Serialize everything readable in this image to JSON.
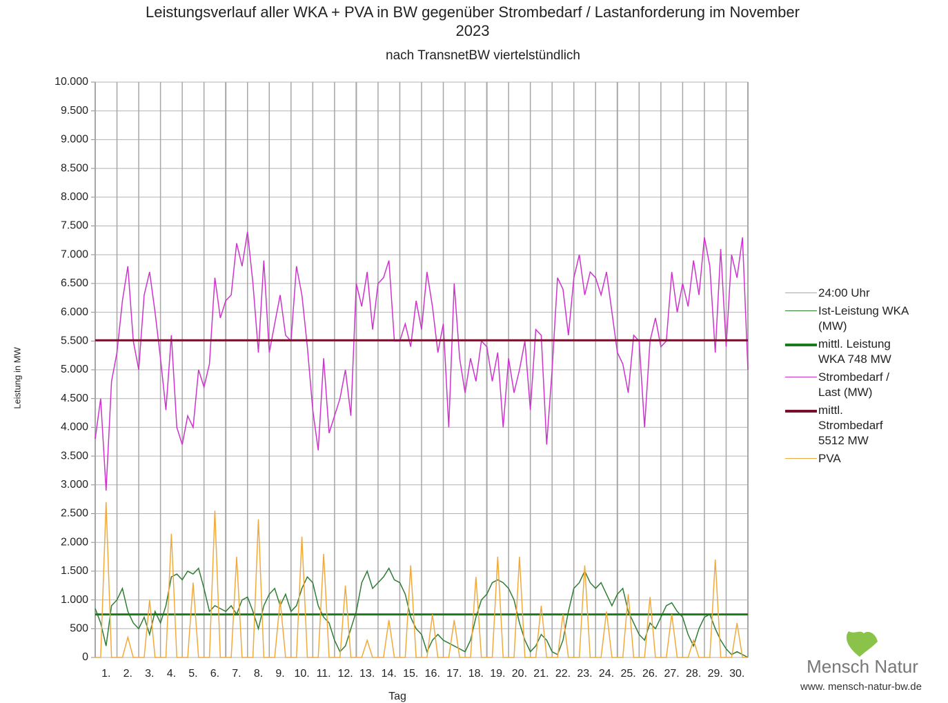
{
  "chart_data": {
    "type": "line",
    "title": "Leistungsverlauf aller WKA + PVA in BW gegenüber  Strombedarf / Lastanforderung im November 2023",
    "subtitle": "nach TransnetBW viertelstündlich",
    "xlabel": "Tag",
    "ylabel": "Leistung in MW",
    "xlim": [
      0,
      30
    ],
    "ylim": [
      0,
      10000
    ],
    "yticks": [
      0,
      500,
      {
        "value": 1000,
        "label": "1.000"
      },
      {
        "value": 1500,
        "label": "1.500"
      },
      {
        "value": 2000,
        "label": "2.000"
      },
      {
        "value": 2500,
        "label": "2.500"
      },
      {
        "value": 3000,
        "label": "3.000"
      },
      {
        "value": 3500,
        "label": "3.500"
      },
      {
        "value": 4000,
        "label": "4.000"
      },
      {
        "value": 4500,
        "label": "4.500"
      },
      {
        "value": 5000,
        "label": "5.000"
      },
      {
        "value": 5500,
        "label": "5.500"
      },
      {
        "value": 6000,
        "label": "6.000"
      },
      {
        "value": 6500,
        "label": "6.500"
      },
      {
        "value": 7000,
        "label": "7.000"
      },
      {
        "value": 7500,
        "label": "7.500"
      },
      {
        "value": 8000,
        "label": "8.000"
      },
      {
        "value": 8500,
        "label": "8.500"
      },
      {
        "value": 9000,
        "label": "9.000"
      },
      {
        "value": 9500,
        "label": "9.500"
      },
      {
        "value": 10000,
        "label": "10.000"
      }
    ],
    "xticks": [
      {
        "value": 0.5,
        "label": "1."
      },
      {
        "value": 1.5,
        "label": "2."
      },
      {
        "value": 2.5,
        "label": "3."
      },
      {
        "value": 3.5,
        "label": "4."
      },
      {
        "value": 4.5,
        "label": "5."
      },
      {
        "value": 5.5,
        "label": "6."
      },
      {
        "value": 6.5,
        "label": "7."
      },
      {
        "value": 7.5,
        "label": "8."
      },
      {
        "value": 8.5,
        "label": "9."
      },
      {
        "value": 9.5,
        "label": "10."
      },
      {
        "value": 10.5,
        "label": "11."
      },
      {
        "value": 11.5,
        "label": "12."
      },
      {
        "value": 12.5,
        "label": "13."
      },
      {
        "value": 13.5,
        "label": "14."
      },
      {
        "value": 14.5,
        "label": "15."
      },
      {
        "value": 15.5,
        "label": "16."
      },
      {
        "value": 16.5,
        "label": "17."
      },
      {
        "value": 17.5,
        "label": "18."
      },
      {
        "value": 18.5,
        "label": "19."
      },
      {
        "value": 19.5,
        "label": "20."
      },
      {
        "value": 20.5,
        "label": "21."
      },
      {
        "value": 21.5,
        "label": "22."
      },
      {
        "value": 22.5,
        "label": "23."
      },
      {
        "value": 23.5,
        "label": "24."
      },
      {
        "value": 24.5,
        "label": "25."
      },
      {
        "value": 25.5,
        "label": "26."
      },
      {
        "value": 26.5,
        "label": "27."
      },
      {
        "value": 27.5,
        "label": "28."
      },
      {
        "value": 28.5,
        "label": "29."
      },
      {
        "value": 29.5,
        "label": "30."
      }
    ],
    "grid": true,
    "x": [
      0,
      0.25,
      0.5,
      0.75,
      1,
      1.25,
      1.5,
      1.75,
      2,
      2.25,
      2.5,
      2.75,
      3,
      3.25,
      3.5,
      3.75,
      4,
      4.25,
      4.5,
      4.75,
      5,
      5.25,
      5.5,
      5.75,
      6,
      6.25,
      6.5,
      6.75,
      7,
      7.25,
      7.5,
      7.75,
      8,
      8.25,
      8.5,
      8.75,
      9,
      9.25,
      9.5,
      9.75,
      10,
      10.25,
      10.5,
      10.75,
      11,
      11.25,
      11.5,
      11.75,
      12,
      12.25,
      12.5,
      12.75,
      13,
      13.25,
      13.5,
      13.75,
      14,
      14.25,
      14.5,
      14.75,
      15,
      15.25,
      15.5,
      15.75,
      16,
      16.25,
      16.5,
      16.75,
      17,
      17.25,
      17.5,
      17.75,
      18,
      18.25,
      18.5,
      18.75,
      19,
      19.25,
      19.5,
      19.75,
      20,
      20.25,
      20.5,
      20.75,
      21,
      21.25,
      21.5,
      21.75,
      22,
      22.25,
      22.5,
      22.75,
      23,
      23.25,
      23.5,
      23.75,
      24,
      24.25,
      24.5,
      24.75,
      25,
      25.25,
      25.5,
      25.75,
      26,
      26.25,
      26.5,
      26.75,
      27,
      27.25,
      27.5,
      27.75,
      28,
      28.25,
      28.5,
      28.75,
      29,
      29.25,
      29.5,
      29.75,
      30
    ],
    "series": [
      {
        "name": "24:00 Uhr",
        "type": "vline",
        "color": "#a6a6a6",
        "x": [
          0,
          1,
          2,
          3,
          4,
          5,
          6,
          7,
          8,
          9,
          10,
          11,
          12,
          13,
          14,
          15,
          16,
          17,
          18,
          19,
          20,
          21,
          22,
          23,
          24,
          25,
          26,
          27,
          28,
          29,
          30
        ]
      },
      {
        "name": "Ist-Leistung WKA (MW)",
        "type": "line",
        "color": "#2e7d32",
        "values": [
          850,
          600,
          200,
          900,
          1000,
          1200,
          800,
          600,
          500,
          700,
          400,
          800,
          600,
          900,
          1400,
          1450,
          1350,
          1500,
          1450,
          1550,
          1200,
          800,
          900,
          850,
          800,
          900,
          750,
          1000,
          1050,
          800,
          500,
          900,
          1100,
          1200,
          900,
          1100,
          800,
          900,
          1200,
          1400,
          1300,
          900,
          700,
          600,
          300,
          100,
          200,
          500,
          800,
          1300,
          1500,
          1200,
          1300,
          1400,
          1550,
          1350,
          1300,
          1100,
          700,
          500,
          400,
          100,
          300,
          400,
          300,
          250,
          200,
          150,
          100,
          300,
          700,
          1000,
          1100,
          1300,
          1350,
          1300,
          1200,
          1000,
          600,
          300,
          100,
          200,
          400,
          300,
          100,
          50,
          300,
          800,
          1200,
          1300,
          1500,
          1300,
          1200,
          1300,
          1100,
          900,
          1100,
          1200,
          800,
          600,
          400,
          300,
          600,
          500,
          700,
          900,
          950,
          800,
          700,
          400,
          200,
          500,
          700,
          750,
          500,
          300,
          150,
          50,
          100,
          50,
          0
        ]
      },
      {
        "name": "mittl. Leistung WKA 748 MW",
        "type": "hline",
        "color": "#1b7a1b",
        "value": 748
      },
      {
        "name": "Strombedarf / Last (MW)",
        "type": "line",
        "color": "#cc33cc",
        "values": [
          3800,
          4500,
          2900,
          4800,
          5300,
          6200,
          6800,
          5500,
          5000,
          6300,
          6700,
          6000,
          5200,
          4300,
          5600,
          4000,
          3700,
          4200,
          4000,
          5000,
          4700,
          5100,
          6600,
          5900,
          6200,
          6300,
          7200,
          6800,
          7400,
          6500,
          5300,
          6900,
          5300,
          5800,
          6300,
          5600,
          5500,
          6800,
          6300,
          5400,
          4300,
          3600,
          5200,
          3900,
          4200,
          4500,
          5000,
          4200,
          6500,
          6100,
          6700,
          5700,
          6500,
          6600,
          6900,
          5500,
          5500,
          5800,
          5400,
          6200,
          5700,
          6700,
          6100,
          5300,
          5800,
          4000,
          6500,
          5200,
          4600,
          5200,
          4800,
          5500,
          5400,
          4800,
          5300,
          4000,
          5200,
          4600,
          5000,
          5500,
          4300,
          5700,
          5600,
          3700,
          5000,
          6600,
          6400,
          5600,
          6600,
          7000,
          6300,
          6700,
          6600,
          6300,
          6700,
          6000,
          5300,
          5100,
          4600,
          5600,
          5500,
          4000,
          5500,
          5900,
          5400,
          5500,
          6700,
          6000,
          6500,
          6100,
          6900,
          6300,
          7300,
          6800,
          5300,
          7100,
          5400,
          7000,
          6600,
          7300,
          5000
        ]
      },
      {
        "name": "mittl. Strombedarf 5512 MW",
        "type": "hline",
        "color": "#7b0c2a",
        "value": 5512
      },
      {
        "name": "PVA",
        "type": "line",
        "color": "#f2a93b",
        "values": [
          0,
          0,
          2700,
          0,
          0,
          0,
          350,
          0,
          0,
          0,
          1000,
          0,
          0,
          0,
          2150,
          0,
          0,
          0,
          1300,
          0,
          0,
          0,
          2550,
          0,
          0,
          0,
          1750,
          0,
          0,
          0,
          2400,
          0,
          0,
          0,
          1000,
          0,
          0,
          0,
          2100,
          0,
          0,
          0,
          1800,
          0,
          0,
          0,
          1250,
          0,
          0,
          0,
          300,
          0,
          0,
          0,
          650,
          0,
          0,
          0,
          1600,
          0,
          0,
          0,
          750,
          0,
          0,
          0,
          650,
          0,
          0,
          0,
          1400,
          0,
          0,
          0,
          1750,
          0,
          0,
          0,
          1750,
          0,
          0,
          0,
          900,
          0,
          0,
          0,
          750,
          0,
          0,
          0,
          1600,
          0,
          0,
          0,
          800,
          0,
          0,
          0,
          1100,
          0,
          0,
          0,
          1050,
          0,
          0,
          0,
          750,
          0,
          0,
          0,
          300,
          0,
          0,
          0,
          1700,
          0,
          0,
          0,
          600,
          0,
          0
        ]
      }
    ]
  },
  "logo": {
    "name": "Mensch Natur",
    "url": "www. mensch-natur-bw.de"
  }
}
